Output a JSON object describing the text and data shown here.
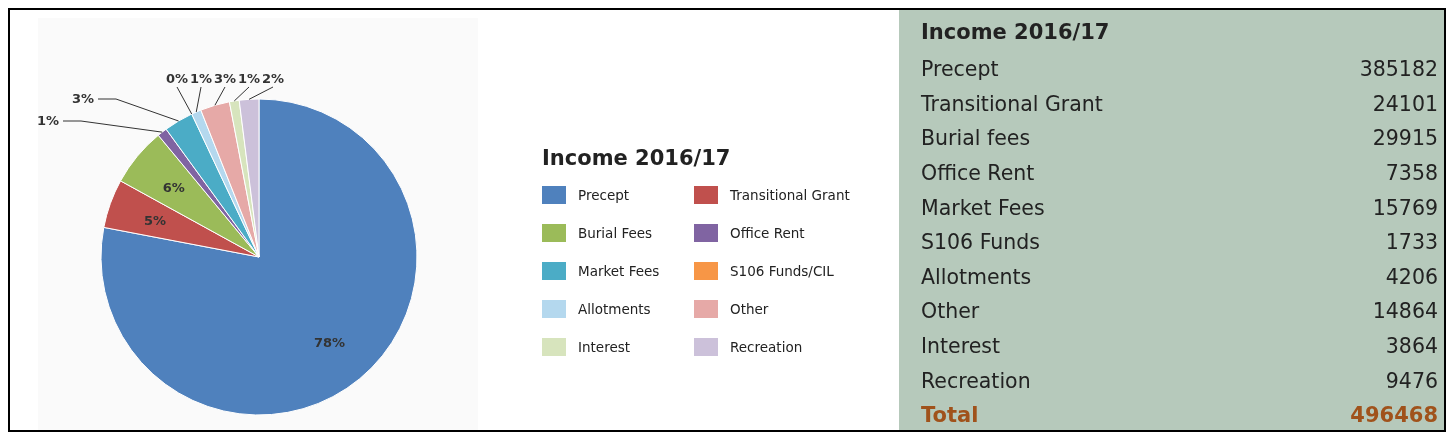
{
  "chart_data": [
    {
      "type": "pie",
      "legend_title": "Income 2016/17",
      "legend": "right",
      "categories": [
        "Precept",
        "Transitional Grant",
        "Burial Fees",
        "Office Rent",
        "Market Fees",
        "S106 Funds/CIL",
        "Allotments",
        "Other",
        "Interest",
        "Recreation"
      ],
      "values": [
        78,
        5,
        6,
        1,
        3,
        0,
        1,
        3,
        1,
        2
      ],
      "value_labels": [
        "78%",
        "5%",
        "6%",
        "1%",
        "3%",
        "0%",
        "1%",
        "3%",
        "1%",
        "2%"
      ],
      "colors": [
        "#4f81bd",
        "#c0504d",
        "#9bbb59",
        "#8064a2",
        "#4bacc6",
        "#f79646",
        "#b4d8ee",
        "#e6a9a7",
        "#d7e4bd",
        "#ccc1da"
      ]
    },
    {
      "type": "other",
      "title": "Income 2016/17",
      "categories": [
        "Precept",
        "Transitional Grant",
        "Burial fees",
        "Office Rent",
        "Market Fees",
        "S106 Funds",
        "Allotments",
        "Other",
        "Interest",
        "Recreation"
      ],
      "values": [
        385182,
        24101,
        29915,
        7358,
        15769,
        1733,
        4206,
        14864,
        3864,
        9476
      ],
      "data_labels": true,
      "annotations": [
        "Total"
      ],
      "totals": [
        "496468"
      ]
    }
  ]
}
